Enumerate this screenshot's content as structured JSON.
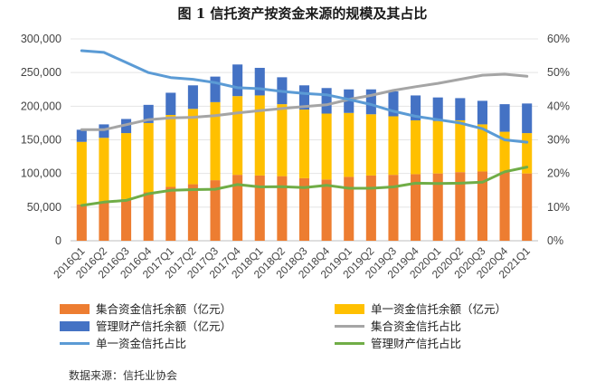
{
  "title": "图 1    信托资产按资金来源的规模及其占比",
  "source": "数据来源：信托业协会",
  "colors": {
    "collective": "#ED7D31",
    "single": "#FFC000",
    "managed": "#4472C4",
    "collective_ratio": "#A5A5A5",
    "single_ratio": "#5B9BD5",
    "managed_ratio": "#70AD47"
  },
  "chart_data": {
    "type": "bar",
    "stacked": true,
    "categories": [
      "2016Q1",
      "2016Q2",
      "2016Q3",
      "2016Q4",
      "2017Q1",
      "2017Q2",
      "2017Q3",
      "2017Q4",
      "2018Q1",
      "2018Q2",
      "2018Q3",
      "2018Q4",
      "2019Q1",
      "2019Q2",
      "2019Q3",
      "2019Q4",
      "2020Q1",
      "2020Q2",
      "2020Q3",
      "2020Q4",
      "2021Q1"
    ],
    "y_left": {
      "min": 0,
      "max": 300000,
      "ticks": [
        "0",
        "50,000",
        "100,000",
        "150,000",
        "200,000",
        "250,000",
        "300,000"
      ]
    },
    "y_right": {
      "min": 0,
      "max": 0.6,
      "ticks": [
        "0%",
        "10%",
        "20%",
        "30%",
        "40%",
        "50%",
        "60%"
      ]
    },
    "series": [
      {
        "name": "集合资金信托余额（亿元）",
        "type": "bar",
        "axis": "left",
        "values": [
          54000,
          58000,
          62000,
          72000,
          80000,
          84000,
          90000,
          98000,
          97000,
          96000,
          93000,
          91000,
          95000,
          97000,
          98000,
          99000,
          100000,
          102000,
          103000,
          103000,
          100000
        ]
      },
      {
        "name": "单一资金信托余额（亿元）",
        "type": "bar",
        "axis": "left",
        "values": [
          93000,
          95000,
          98000,
          103000,
          107000,
          112000,
          116000,
          117000,
          119000,
          107000,
          102000,
          98000,
          95000,
          91000,
          87000,
          80000,
          78000,
          77000,
          70000,
          59000,
          60000
        ]
      },
      {
        "name": "管理财产信托余额（亿元）",
        "type": "bar",
        "axis": "left",
        "values": [
          18000,
          20000,
          21000,
          27000,
          33000,
          35000,
          38000,
          47000,
          41000,
          40000,
          36000,
          38000,
          35000,
          37000,
          37000,
          37000,
          35000,
          33000,
          35000,
          41000,
          44000
        ]
      },
      {
        "name": "集合资金信托占比",
        "type": "line",
        "axis": "right",
        "values": [
          0.33,
          0.33,
          0.345,
          0.36,
          0.365,
          0.367,
          0.372,
          0.38,
          0.387,
          0.393,
          0.399,
          0.404,
          0.42,
          0.432,
          0.447,
          0.458,
          0.468,
          0.48,
          0.492,
          0.495,
          0.489
        ]
      },
      {
        "name": "单一资金信托占比",
        "type": "line",
        "axis": "right",
        "values": [
          0.565,
          0.56,
          0.53,
          0.5,
          0.485,
          0.48,
          0.47,
          0.455,
          0.452,
          0.444,
          0.438,
          0.434,
          0.42,
          0.405,
          0.385,
          0.37,
          0.36,
          0.35,
          0.333,
          0.3,
          0.293
        ]
      },
      {
        "name": "管理财产信托占比",
        "type": "line",
        "axis": "right",
        "values": [
          0.105,
          0.115,
          0.12,
          0.14,
          0.15,
          0.152,
          0.153,
          0.167,
          0.16,
          0.161,
          0.158,
          0.165,
          0.156,
          0.156,
          0.16,
          0.171,
          0.17,
          0.171,
          0.174,
          0.205,
          0.219
        ]
      }
    ],
    "legend_position": "bottom",
    "grid": false
  }
}
